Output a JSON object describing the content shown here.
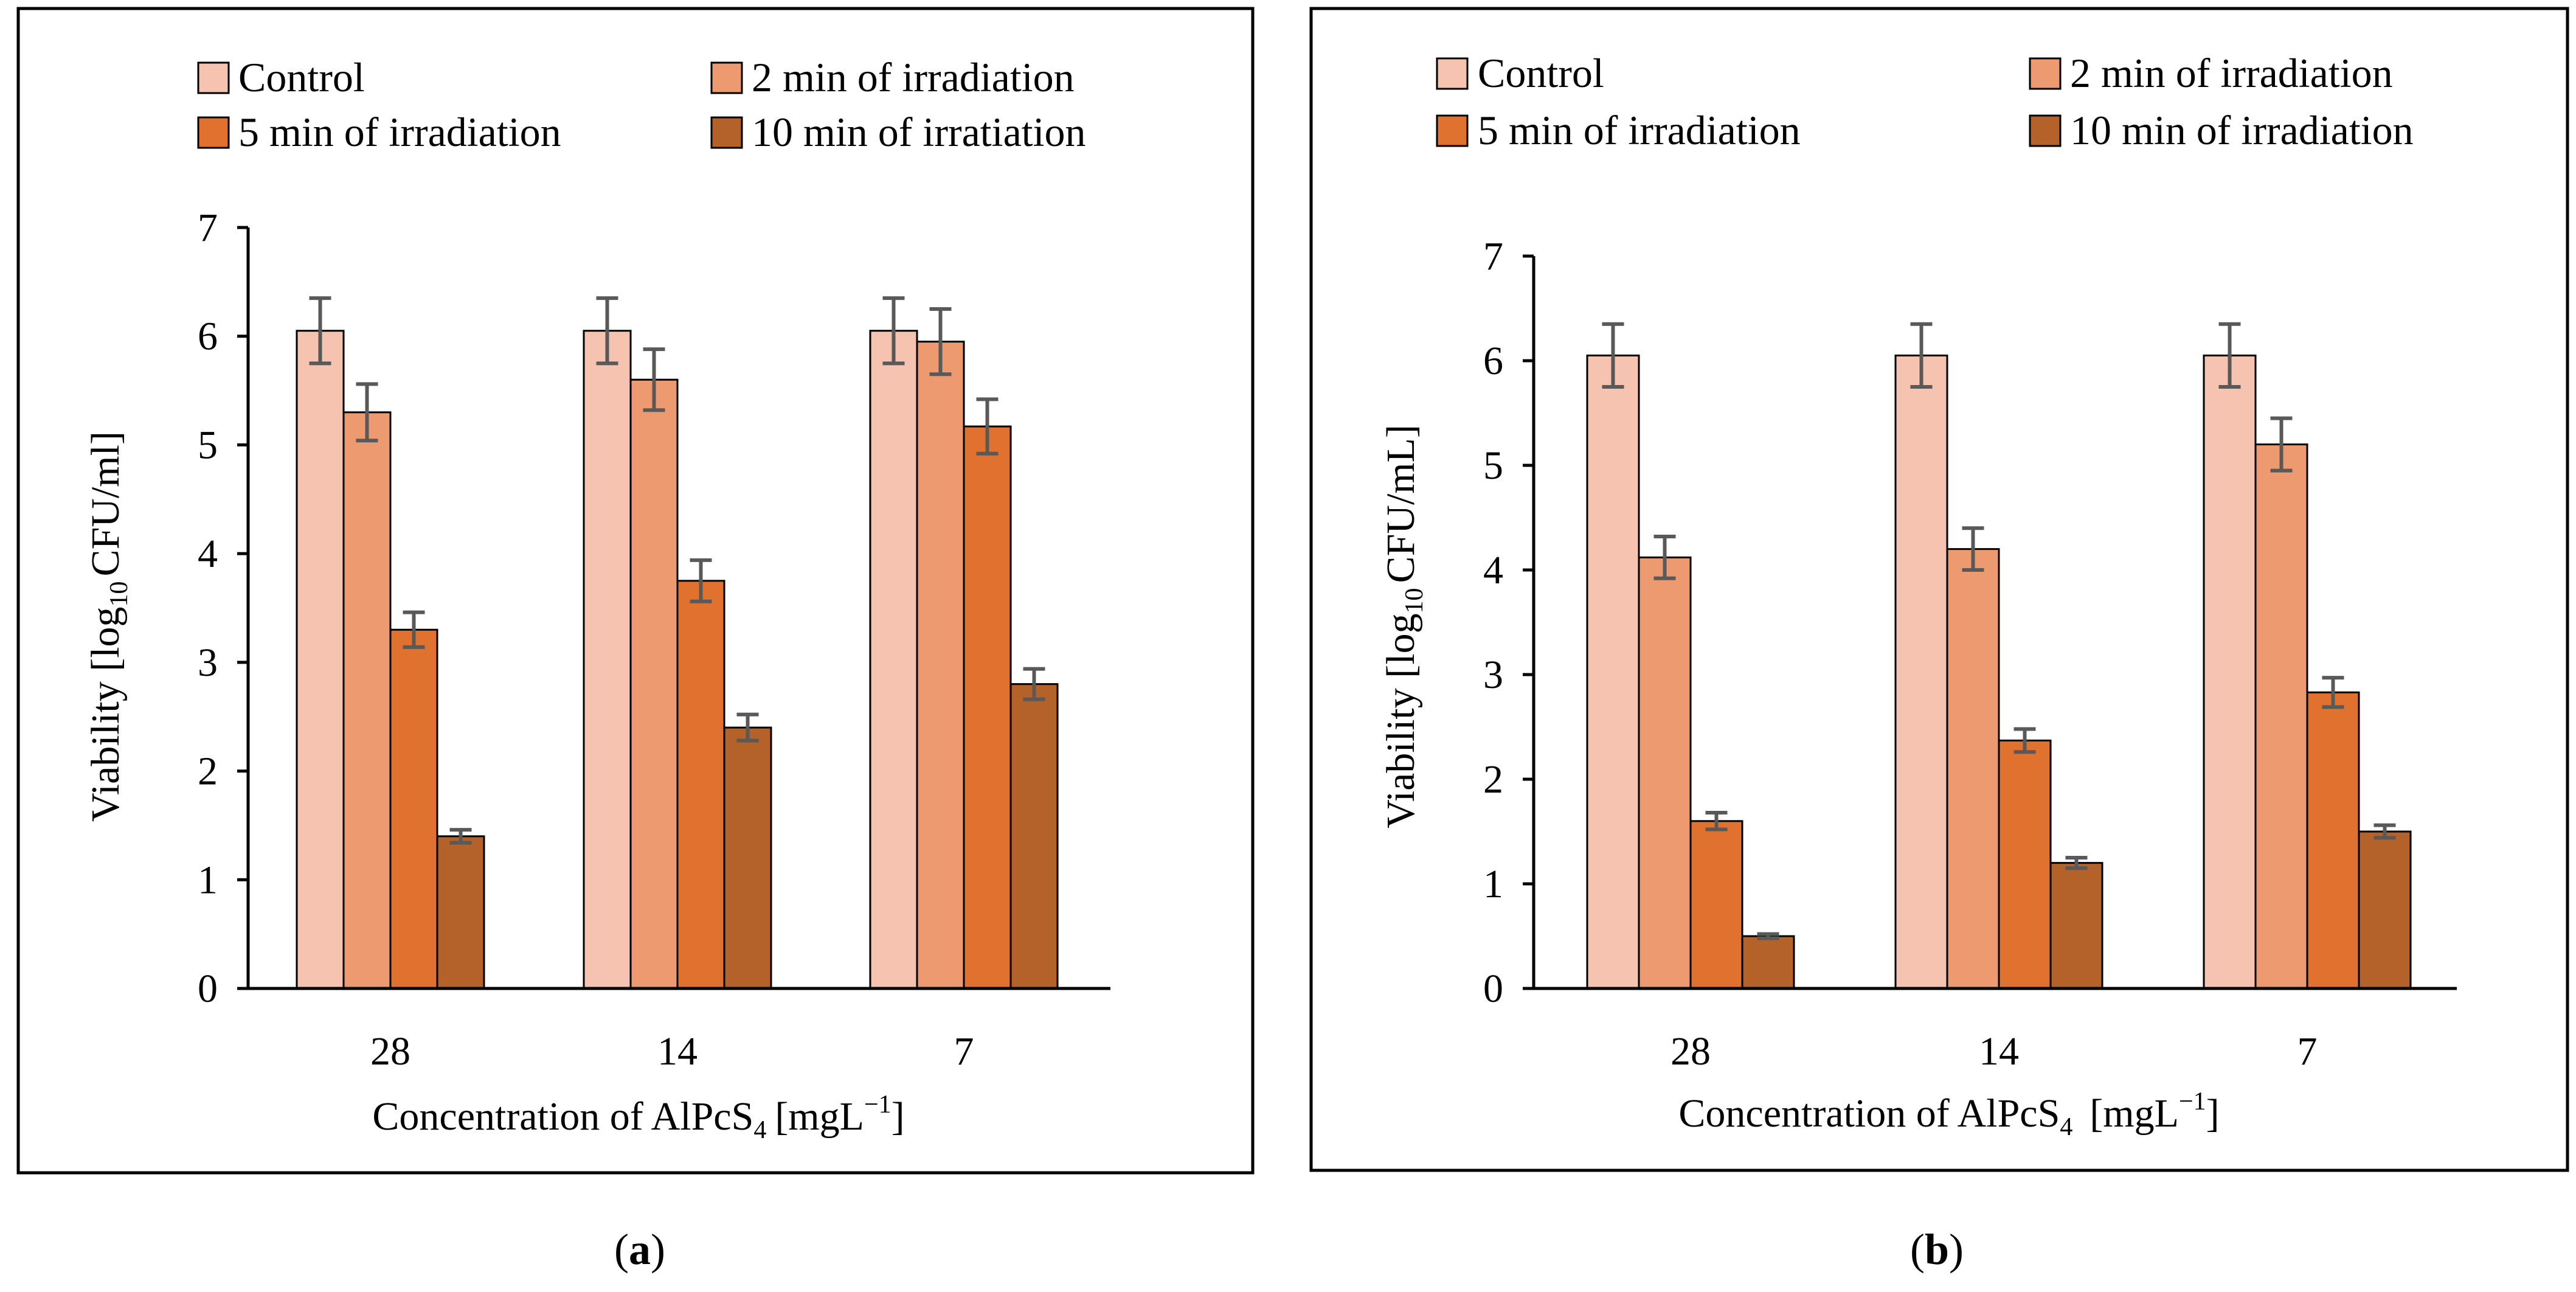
{
  "colors": {
    "series": [
      "#F5C3B0",
      "#EE9A70",
      "#E0712F",
      "#B5612A"
    ],
    "bar_outline": "#000000",
    "error_bar": "#595959",
    "axis": "#000000",
    "panel_border": "#000000"
  },
  "chart_data": [
    {
      "type": "bar",
      "panel_label": "a",
      "categories": [
        "28",
        "14",
        "7"
      ],
      "series": [
        {
          "name": "Control",
          "values": [
            6.05,
            6.05,
            6.05
          ],
          "errors": [
            0.3,
            0.3,
            0.3
          ]
        },
        {
          "name": "2 min of irradiation",
          "values": [
            5.3,
            5.6,
            5.95
          ],
          "errors": [
            0.26,
            0.28,
            0.3
          ]
        },
        {
          "name": "5 min of irradiation",
          "values": [
            3.3,
            3.75,
            5.17
          ],
          "errors": [
            0.16,
            0.19,
            0.25
          ]
        },
        {
          "name": "10 min of irratiation",
          "values": [
            1.4,
            2.4,
            2.8
          ],
          "errors": [
            0.06,
            0.12,
            0.14
          ]
        }
      ],
      "xlabel": "Concentration of AlPcS",
      "xlabel_sub": "4",
      "xlabel_unit": "[mgL",
      "xlabel_unit_sup": "−1",
      "xlabel_unit_end": "]",
      "ylabel": "Viability [log",
      "ylabel_sub": "10",
      "ylabel_end": "CFU/ml]",
      "ylim": [
        0,
        7
      ],
      "yticks": [
        "0",
        "1",
        "2",
        "3",
        "4",
        "5",
        "6",
        "7"
      ],
      "legend": "top",
      "grid": false
    },
    {
      "type": "bar",
      "panel_label": "b",
      "categories": [
        "28",
        "14",
        "7"
      ],
      "series": [
        {
          "name": "Control",
          "values": [
            6.05,
            6.05,
            6.05
          ],
          "errors": [
            0.3,
            0.3,
            0.3
          ]
        },
        {
          "name": "2 min of irradiation",
          "values": [
            4.12,
            4.2,
            5.2
          ],
          "errors": [
            0.2,
            0.2,
            0.25
          ]
        },
        {
          "name": "5 min of irradiation",
          "values": [
            1.6,
            2.37,
            2.83
          ],
          "errors": [
            0.08,
            0.11,
            0.14
          ]
        },
        {
          "name": "10 min of irradiation",
          "values": [
            0.5,
            1.2,
            1.5
          ],
          "errors": [
            0.02,
            0.05,
            0.06
          ]
        }
      ],
      "xlabel": "Concentration of AlPcS",
      "xlabel_sub": "4",
      "xlabel_unit": "[mgL",
      "xlabel_unit_sup": "−1",
      "xlabel_unit_end": "]",
      "ylabel": "Viability [log",
      "ylabel_sub": "10",
      "ylabel_end": "CFU/mL]",
      "ylim": [
        0,
        7
      ],
      "yticks": [
        "0",
        "1",
        "2",
        "3",
        "4",
        "5",
        "6",
        "7"
      ],
      "legend": "top",
      "grid": false
    }
  ]
}
